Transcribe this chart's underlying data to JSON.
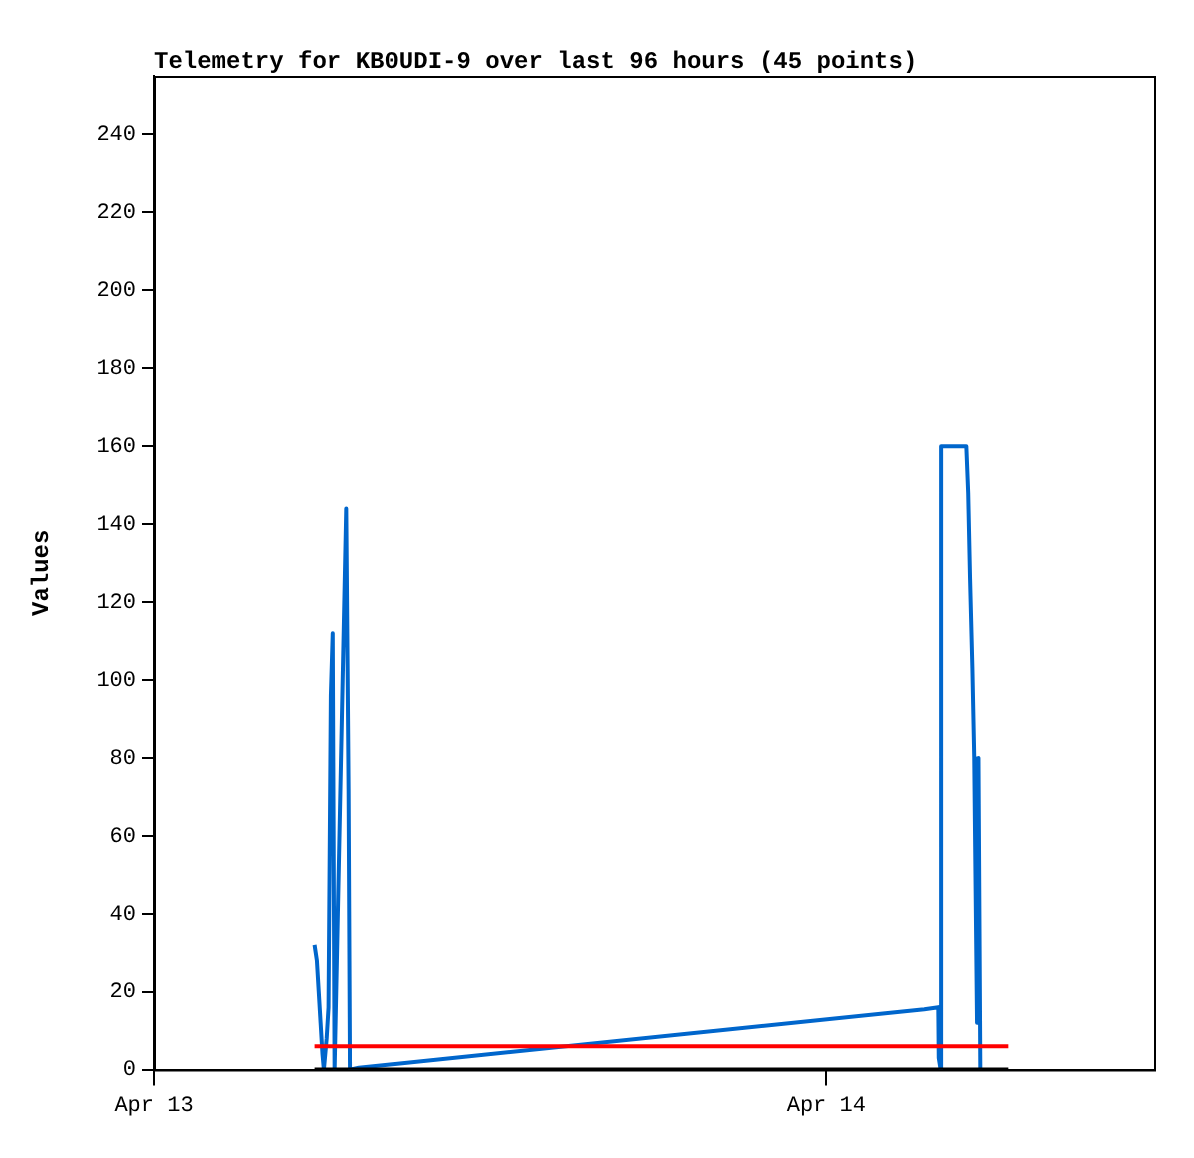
{
  "chart_data": {
    "type": "line",
    "title": "Telemetry for KB0UDI-9 over last 96 hours (45 points)",
    "ylabel": "Values",
    "xlim": [
      "--04-13",
      "--04-14T11:42"
    ],
    "xticks": [
      {
        "value": "--04-13",
        "label": "Apr 13"
      },
      {
        "value": "--04-14",
        "label": "Apr 14"
      }
    ],
    "ylim": [
      0,
      255
    ],
    "yticks": [
      0,
      20,
      40,
      60,
      80,
      100,
      120,
      140,
      160,
      180,
      200,
      220,
      240
    ],
    "grid": false,
    "legend": false,
    "marker": "none",
    "line_style": "solid",
    "series": [
      {
        "color": "#0066cc",
        "x": [
          "--04-13T05:44",
          "--04-13T05:49",
          "--04-13T05:53",
          "--04-13T05:57",
          "--04-13T06:01",
          "--04-13T06:04",
          "--04-13T06:10",
          "--04-13T06:14",
          "--04-13T06:19",
          "--04-13T06:23",
          "--04-13T06:27",
          "--04-13T06:52",
          "--04-13T06:57",
          "--04-13T07:00",
          "--04-13T07:19",
          "--04-14T03:30",
          "--04-14T04:00",
          "--04-14T04:01",
          "--04-14T04:05",
          "--04-14T04:06",
          "--04-14T05:00",
          "--04-14T05:04",
          "--04-14T05:08",
          "--04-14T05:13",
          "--04-14T05:17",
          "--04-14T05:19",
          "--04-14T05:23",
          "--04-14T05:26",
          "--04-14T05:30"
        ],
        "values": [
          32,
          28,
          20,
          12,
          4,
          0,
          8,
          16,
          96,
          112,
          0,
          144,
          72,
          0,
          0.5,
          15.5,
          16,
          3,
          0,
          160,
          160,
          148,
          126,
          103,
          80,
          57,
          12,
          80,
          0
        ]
      },
      {
        "color": "#ff0000",
        "x": [
          "--04-13T05:44",
          "--04-14T06:30"
        ],
        "values": [
          6,
          6
        ]
      },
      {
        "color": "#000000",
        "x": [
          "--04-13T05:44",
          "--04-14T06:30"
        ],
        "values": [
          0,
          0
        ]
      }
    ]
  }
}
